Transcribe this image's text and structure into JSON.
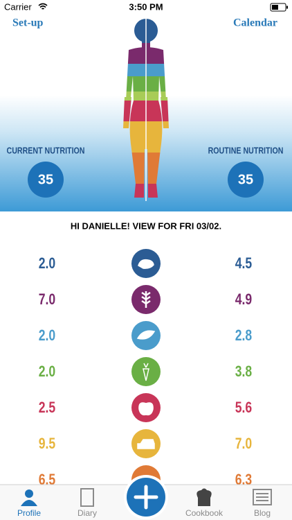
{
  "status_bar": {
    "carrier": "Carrier",
    "time": "3:50 PM"
  },
  "nav": {
    "left": "Set-up",
    "right": "Calendar"
  },
  "summary": {
    "current": {
      "label": "CURRENT NUTRITION",
      "value": "35"
    },
    "routine": {
      "label": "ROUTINE NUTRITION",
      "value": "35"
    }
  },
  "greeting": "HI DANIELLE! VIEW FOR FRI 03/02.",
  "rows": [
    {
      "left": "2.0",
      "right": "4.5",
      "color": "#2b5c94"
    },
    {
      "left": "7.0",
      "right": "4.9",
      "color": "#7a2a6c"
    },
    {
      "left": "2.0",
      "right": "2.8",
      "color": "#4a9ccb"
    },
    {
      "left": "2.0",
      "right": "3.8",
      "color": "#6aaf45"
    },
    {
      "left": "2.5",
      "right": "5.6",
      "color": "#c83558"
    },
    {
      "left": "9.5",
      "right": "7.0",
      "color": "#e7b53c"
    },
    {
      "left": "6.5",
      "right": "6.3",
      "color": "#e07a36"
    }
  ],
  "tabs": [
    "Profile",
    "Diary",
    "Cookbook",
    "Blog"
  ]
}
